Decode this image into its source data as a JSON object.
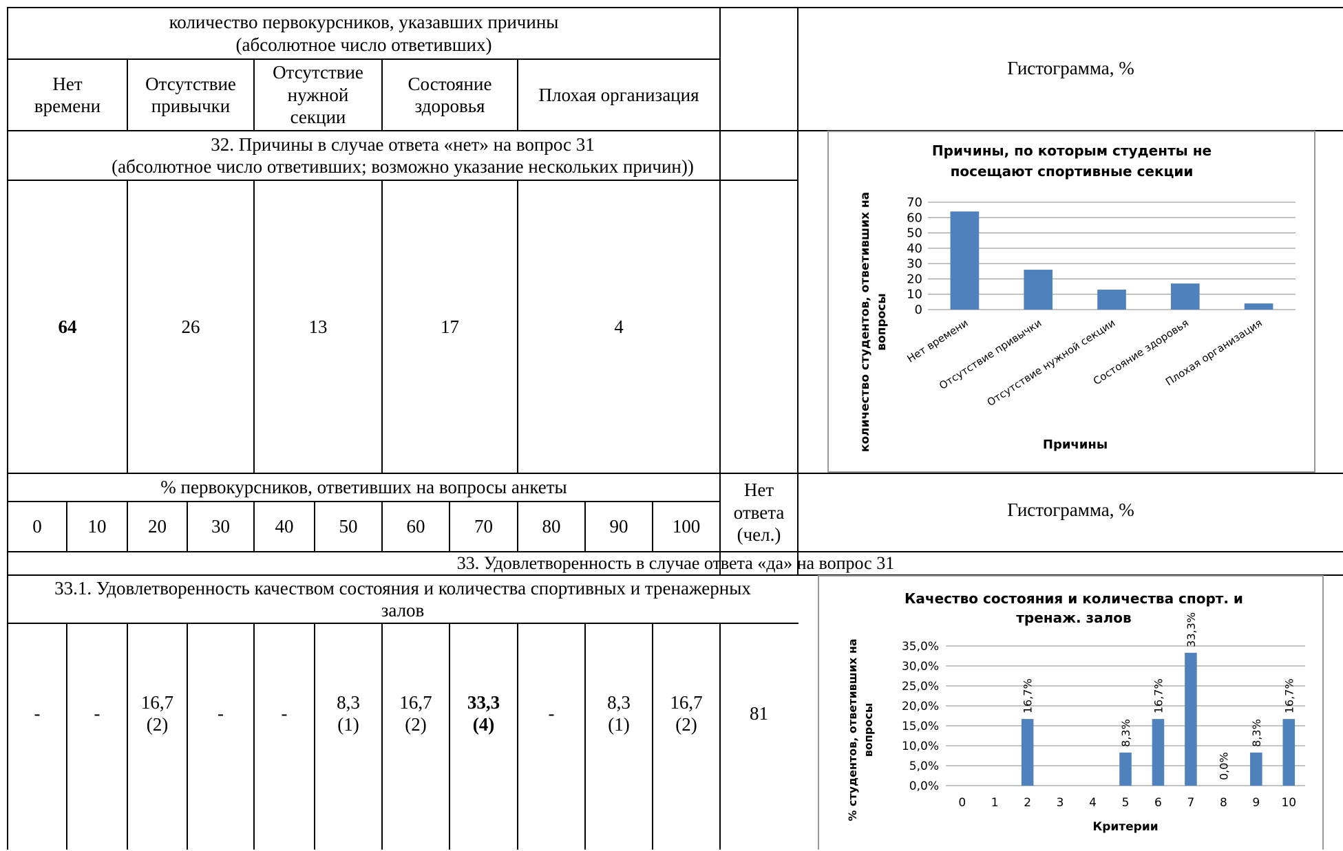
{
  "top_header": {
    "title_line1": "количество первокурсников, указавших причины",
    "title_line2": "(абсолютное число ответивших)",
    "columns": [
      {
        "l1": "Нет",
        "l2": "времени"
      },
      {
        "l1": "Отсутствие",
        "l2": "привычки"
      },
      {
        "l1": "Отсутствие",
        "l2": "нужной",
        "l3": "секции"
      },
      {
        "l1": "Состояние",
        "l2": "здоровья"
      },
      {
        "l1": "Плохая организация"
      }
    ],
    "histogram_label": "Гистограмма, %"
  },
  "q32": {
    "title_line1": "32. Причины в случае ответа «нет» на вопрос 31",
    "title_line2": "(абсолютное число ответивших; возможно указание нескольких причин))",
    "values": [
      "64",
      "26",
      "13",
      "17",
      "4"
    ]
  },
  "pct_header": {
    "title": "% первокурсников, ответивших на вопросы анкеты",
    "scale": [
      "0",
      "10",
      "20",
      "30",
      "40",
      "50",
      "60",
      "70",
      "80",
      "90",
      "100"
    ],
    "no_answer_l1": "Нет",
    "no_answer_l2": "ответа",
    "no_answer_l3": "(чел.)",
    "histogram_label": "Гистограмма, %"
  },
  "q33": {
    "title": "33. Удовлетворенность в случае ответа «да» на вопрос 31",
    "sub_title_line1": "33.1. Удовлетворенность качеством состояния и количества спортивных и тренажерных",
    "sub_title_line2": "залов",
    "cells": [
      {
        "v": "-"
      },
      {
        "v": "-"
      },
      {
        "v": "16,7",
        "n": "(2)"
      },
      {
        "v": "-"
      },
      {
        "v": "-"
      },
      {
        "v": "8,3",
        "n": "(1)"
      },
      {
        "v": "16,7",
        "n": "(2)"
      },
      {
        "v": "33,3",
        "n": "(4)"
      },
      {
        "v": "-"
      },
      {
        "v": "8,3",
        "n": "(1)"
      },
      {
        "v": "16,7",
        "n": "(2)"
      }
    ],
    "no_answer": "81"
  },
  "chart_data": [
    {
      "type": "bar",
      "title_line1": "Причины, по которым студенты не",
      "title_line2": "посещают спортивные секции",
      "categories": [
        "Нет времени",
        "Отсутствие привычки",
        "Отсутствие нужной секции",
        "Состояние здоровья",
        "Плохая организация"
      ],
      "values": [
        64,
        26,
        13,
        17,
        4
      ],
      "ylabel_line1": "количество студентов, ответивших на",
      "ylabel_line2": "вопросы",
      "xlabel": "Причины",
      "ylim": [
        0,
        70
      ],
      "yticks": [
        "0",
        "10",
        "20",
        "30",
        "40",
        "50",
        "60",
        "70"
      ],
      "grid": true,
      "bar_color": "#4f81bd"
    },
    {
      "type": "bar",
      "title_line1": "Качество состояния и количества спорт. и",
      "title_line2": "тренаж. залов",
      "categories": [
        "0",
        "1",
        "2",
        "3",
        "4",
        "5",
        "6",
        "7",
        "8",
        "9",
        "10"
      ],
      "values": [
        null,
        null,
        16.7,
        null,
        null,
        8.3,
        16.7,
        33.3,
        0,
        8.3,
        16.7
      ],
      "data_labels": [
        "",
        "",
        "16,7%",
        "",
        "",
        "8,3%",
        "16,7%",
        "33,3%",
        "0,0%",
        "8,3%",
        "16,7%"
      ],
      "ylabel_line1": "% студентов, ответивших на",
      "ylabel_line2": "вопросы",
      "xlabel": "Критерии",
      "ylim": [
        0,
        35
      ],
      "yticks": [
        "0,0%",
        "5,0%",
        "10,0%",
        "15,0%",
        "20,0%",
        "25,0%",
        "30,0%",
        "35,0%"
      ],
      "grid": true,
      "bar_color": "#4f81bd"
    }
  ]
}
